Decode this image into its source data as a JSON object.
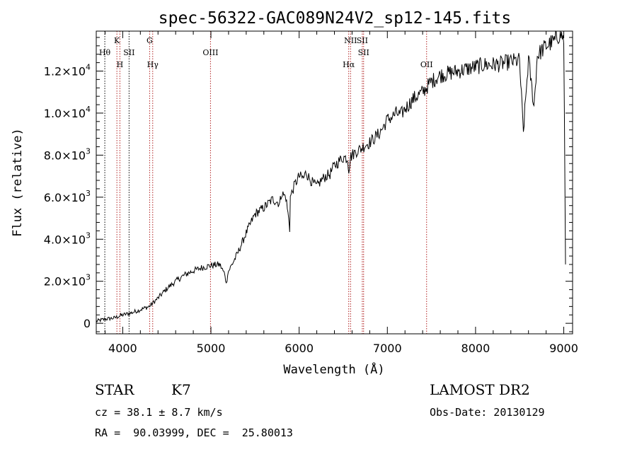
{
  "chart_data": {
    "type": "line",
    "title": "spec-56322-GAC089N24V2_sp12-145.fits",
    "xlabel": "Wavelength (Å)",
    "ylabel": "Flux (relative)",
    "xlim": [
      3700,
      9100
    ],
    "ylim": [
      -500,
      13900
    ],
    "x_ticks": [
      4000,
      5000,
      6000,
      7000,
      8000,
      9000
    ],
    "x_tick_labels": [
      "4000",
      "5000",
      "6000",
      "7000",
      "8000",
      "9000"
    ],
    "y_ticks": [
      0,
      2000,
      4000,
      6000,
      8000,
      10000,
      12000
    ],
    "y_tick_labels": [
      {
        "mant": "0",
        "exp": ""
      },
      {
        "mant": "2.0×10",
        "exp": "3"
      },
      {
        "mant": "4.0×10",
        "exp": "3"
      },
      {
        "mant": "6.0×10",
        "exp": "3"
      },
      {
        "mant": "8.0×10",
        "exp": "3"
      },
      {
        "mant": "1.0×10",
        "exp": "4"
      },
      {
        "mant": "1.2×10",
        "exp": "4"
      }
    ],
    "grid": false,
    "legend": "none",
    "line_color": "#000000",
    "marker_color": "#b22222",
    "spectral_lines": [
      {
        "wave": 3797,
        "label": "Hθ",
        "tier": 2,
        "style": "dotted-black"
      },
      {
        "wave": 3934,
        "label": "K",
        "tier": 1,
        "style": "dotted-red"
      },
      {
        "wave": 3968,
        "label": "H",
        "tier": 3,
        "style": "dotted-red"
      },
      {
        "wave": 4072,
        "label": "SII",
        "tier": 2,
        "style": "dotted-black"
      },
      {
        "wave": 4305,
        "label": "G",
        "tier": 1,
        "style": "dotted-red"
      },
      {
        "wave": 4340,
        "label": "Hγ",
        "tier": 3,
        "style": "dotted-red"
      },
      {
        "wave": 4995,
        "label": "OIII",
        "tier": 2,
        "style": "dotted-red"
      },
      {
        "wave": 6562,
        "label": "Hα",
        "tier": 3,
        "style": "dotted-red"
      },
      {
        "wave": 6583,
        "label": "NII",
        "tier": 1,
        "style": "dotted-red"
      },
      {
        "wave": 6716,
        "label": "SII",
        "tier": 1,
        "style": "dotted-red"
      },
      {
        "wave": 6731,
        "label": "SII",
        "tier": 2,
        "style": "dotted-red"
      },
      {
        "wave": 7445,
        "label": "OII",
        "tier": 3,
        "style": "dotted-red"
      }
    ],
    "series": [
      {
        "x": [
          3700,
          3800,
          3900,
          4000,
          4100,
          4200,
          4300,
          4400,
          4500,
          4600,
          4700,
          4800,
          4900,
          5000,
          5100,
          5160,
          5175,
          5190,
          5300,
          5400,
          5500,
          5600,
          5700,
          5780,
          5800,
          5850,
          5889,
          5893,
          5900,
          5950,
          6000,
          6050,
          6080,
          6100,
          6150,
          6200,
          6250,
          6300,
          6350,
          6400,
          6450,
          6500,
          6550,
          6563,
          6580,
          6600,
          6650,
          6700,
          6750,
          6800,
          6850,
          6900,
          6950,
          7000,
          7050,
          7100,
          7150,
          7200,
          7300,
          7400,
          7500,
          7600,
          7700,
          7800,
          7900,
          8000,
          8100,
          8200,
          8300,
          8400,
          8498,
          8542,
          8600,
          8662,
          8700,
          8800,
          8900,
          8960,
          9000,
          9020
        ],
        "y": [
          100,
          200,
          250,
          400,
          500,
          650,
          800,
          1200,
          1650,
          2000,
          2300,
          2500,
          2650,
          2750,
          2800,
          2300,
          1850,
          2400,
          3300,
          4300,
          5200,
          5500,
          5900,
          5700,
          6200,
          6000,
          4700,
          4500,
          6000,
          6600,
          7000,
          6900,
          7200,
          7000,
          6700,
          6500,
          6800,
          7000,
          7100,
          7500,
          7700,
          7900,
          7850,
          7300,
          7900,
          8000,
          8200,
          8300,
          8500,
          8600,
          8800,
          9000,
          9300,
          9700,
          9800,
          10000,
          9900,
          10200,
          10700,
          11000,
          11500,
          11800,
          11900,
          12000,
          12100,
          12200,
          12300,
          12300,
          12350,
          12450,
          12500,
          9100,
          12600,
          10300,
          12750,
          13200,
          13450,
          13800,
          13500,
          2800
        ]
      }
    ],
    "footer": {
      "object_class": "STAR",
      "subclass": "K7",
      "survey": "LAMOST DR2",
      "cz": "cz = 38.1 ± 8.7 km/s",
      "obs_date": "Obs-Date: 20130129",
      "coords": "RA =  90.03999, DEC =  25.80013"
    }
  }
}
